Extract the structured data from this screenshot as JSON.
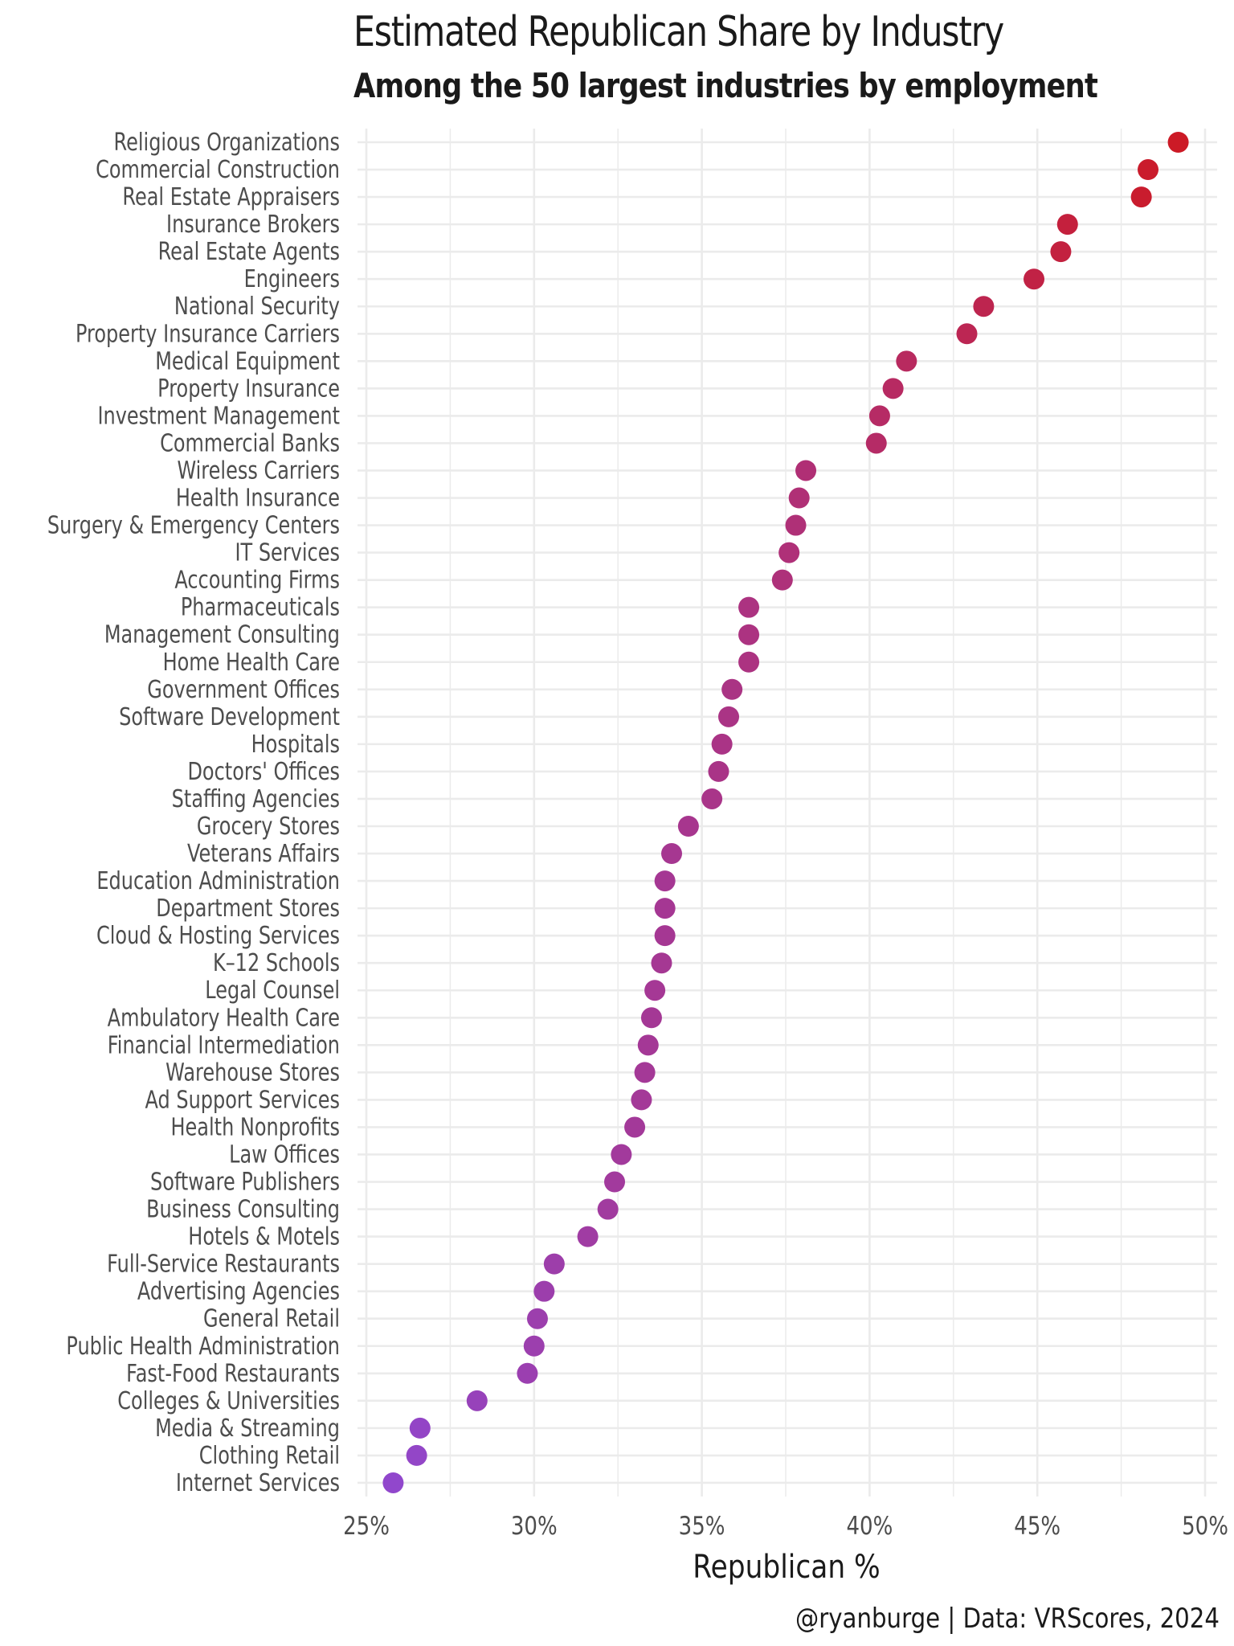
{
  "title": "Estimated Republican Share by Industry",
  "subtitle": "Among the 50 largest industries by employment",
  "caption": "@ryanburge | Data: VRScores, 2024",
  "colors": {
    "high": "#cc1a26",
    "low": "#9147cc",
    "grid": "#ebebeb"
  },
  "chart_data": {
    "type": "scatter",
    "xlabel": "Republican %",
    "xlim": [
      25,
      50
    ],
    "x_ticks": [
      "25%",
      "30%",
      "35%",
      "40%",
      "45%",
      "50%"
    ],
    "x_tick_values": [
      25,
      30,
      35,
      40,
      45,
      50
    ],
    "grid": true,
    "categories": [
      "Religious Organizations",
      "Commercial Construction",
      "Real Estate Appraisers",
      "Insurance Brokers",
      "Real Estate Agents",
      "Engineers",
      "National Security",
      "Property Insurance Carriers",
      "Medical Equipment",
      "Property Insurance",
      "Investment Management",
      "Commercial Banks",
      "Wireless Carriers",
      "Health Insurance",
      "Surgery & Emergency Centers",
      "IT Services",
      "Accounting Firms",
      "Pharmaceuticals",
      "Management Consulting",
      "Home Health Care",
      "Government Offices",
      "Software Development",
      "Hospitals",
      "Doctors' Offices",
      "Staffing Agencies",
      "Grocery Stores",
      "Veterans Affairs",
      "Education Administration",
      "Department Stores",
      "Cloud & Hosting Services",
      "K–12 Schools",
      "Legal Counsel",
      "Ambulatory Health Care",
      "Financial Intermediation",
      "Warehouse Stores",
      "Ad Support Services",
      "Health Nonprofits",
      "Law Offices",
      "Software Publishers",
      "Business Consulting",
      "Hotels & Motels",
      "Full-Service Restaurants",
      "Advertising Agencies",
      "General Retail",
      "Public Health Administration",
      "Fast-Food Restaurants",
      "Colleges & Universities",
      "Media & Streaming",
      "Clothing Retail",
      "Internet Services"
    ],
    "values": [
      49.2,
      48.3,
      48.1,
      45.9,
      45.7,
      44.9,
      43.4,
      42.9,
      41.1,
      40.7,
      40.3,
      40.2,
      38.1,
      37.9,
      37.8,
      37.6,
      37.4,
      36.4,
      36.4,
      36.4,
      35.9,
      35.8,
      35.6,
      35.5,
      35.3,
      34.6,
      34.1,
      33.9,
      33.9,
      33.9,
      33.8,
      33.6,
      33.5,
      33.4,
      33.3,
      33.2,
      33.0,
      32.6,
      32.4,
      32.2,
      31.6,
      30.6,
      30.3,
      30.1,
      30.0,
      29.8,
      28.3,
      26.6,
      26.5,
      25.8
    ]
  }
}
